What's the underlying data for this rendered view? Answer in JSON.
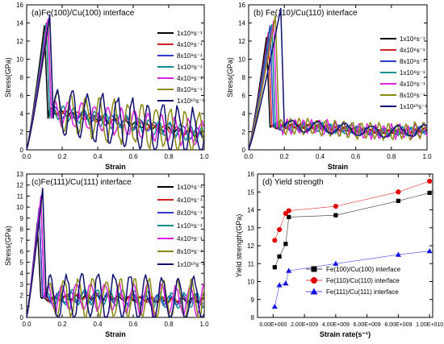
{
  "chart_data": [
    {
      "type": "line",
      "panel_label": "(a)Fe(100)/Cu(100) interface",
      "xlabel": "Strain",
      "ylabel": "Stress(GPa)",
      "xlim": [
        0,
        1.0
      ],
      "ylim": [
        0,
        16
      ],
      "xticks": [
        "0.0",
        "0.2",
        "0.4",
        "0.6",
        "0.8",
        "1.0"
      ],
      "yticks": [
        "0",
        "2",
        "4",
        "6",
        "8",
        "10",
        "12",
        "14",
        "16"
      ],
      "legend_position": "top-right",
      "series": [
        {
          "name": "1x10⁸s⁻¹",
          "color": "#000000",
          "peak": [
            0.1,
            13.7
          ],
          "osc_amp": 0.3,
          "osc_per": 0.06,
          "end": 1.0
        },
        {
          "name": "4x10⁸s⁻¹",
          "color": "#d42020",
          "peak": [
            0.11,
            14.0
          ],
          "osc_amp": 0.4,
          "osc_per": 0.07,
          "end": 1.0
        },
        {
          "name": "8x10⁸s⁻¹",
          "color": "#2d3ccc",
          "peak": [
            0.12,
            14.3
          ],
          "osc_amp": 0.6,
          "osc_per": 0.08,
          "end": 1.0
        },
        {
          "name": "1x10⁹s⁻¹",
          "color": "#0f8f8f",
          "peak": [
            0.11,
            13.9
          ],
          "osc_amp": 0.8,
          "osc_per": 0.06,
          "end": 1.0
        },
        {
          "name": "4x10⁹s⁻¹",
          "color": "#e020e0",
          "peak": [
            0.12,
            14.4
          ],
          "osc_amp": 1.4,
          "osc_per": 0.075,
          "end": 1.0
        },
        {
          "name": "8x10⁹s⁻¹",
          "color": "#8a8a10",
          "peak": [
            0.13,
            14.5
          ],
          "osc_amp": 2.2,
          "osc_per": 0.08,
          "end": 1.0
        },
        {
          "name": "1x10¹⁰s⁻¹",
          "color": "#101070",
          "peak": [
            0.13,
            14.9
          ],
          "osc_amp": 2.6,
          "osc_per": 0.085,
          "end": 1.0
        }
      ]
    },
    {
      "type": "line",
      "panel_label": "(b) Fe(110)/Cu(110) interface",
      "xlabel": "Strain",
      "ylabel": "Stress(GPa)",
      "xlim": [
        0,
        1.0
      ],
      "ylim": [
        0,
        16
      ],
      "xticks": [
        "0.0",
        "0.2",
        "0.4",
        "0.6",
        "0.8",
        "1.0"
      ],
      "yticks": [
        "0",
        "2",
        "4",
        "6",
        "8",
        "10",
        "12",
        "14",
        "16"
      ],
      "legend_position": "right",
      "series": [
        {
          "name": "1x10⁸s⁻¹",
          "color": "#000000",
          "peak": [
            0.1,
            12.4
          ],
          "osc_amp": 0.2,
          "osc_per": 0.05,
          "end": 1.0
        },
        {
          "name": "4x10⁸s⁻¹",
          "color": "#d42020",
          "peak": [
            0.11,
            12.9
          ],
          "osc_amp": 0.3,
          "osc_per": 0.05,
          "end": 1.0
        },
        {
          "name": "8x10⁸s⁻¹",
          "color": "#2d3ccc",
          "peak": [
            0.12,
            13.7
          ],
          "osc_amp": 0.4,
          "osc_per": 0.05,
          "end": 1.0
        },
        {
          "name": "1x10⁹s⁻¹",
          "color": "#0f8f8f",
          "peak": [
            0.13,
            13.8
          ],
          "osc_amp": 0.5,
          "osc_per": 0.05,
          "end": 1.0
        },
        {
          "name": "4x10⁹s⁻¹",
          "color": "#e020e0",
          "peak": [
            0.14,
            14.2
          ],
          "osc_amp": 0.8,
          "osc_per": 0.045,
          "end": 1.0
        },
        {
          "name": "8x10⁹s⁻¹",
          "color": "#8a8a10",
          "peak": [
            0.15,
            14.8
          ],
          "osc_amp": 0.9,
          "osc_per": 0.05,
          "end": 1.0
        },
        {
          "name": "1x10¹⁰s⁻¹",
          "color": "#101070",
          "peak": [
            0.18,
            15.6
          ],
          "osc_amp": 0.6,
          "osc_per": 0.15,
          "end": 1.0
        }
      ]
    },
    {
      "type": "line",
      "panel_label": "(c)Fe(111)/Cu(111) interface",
      "xlabel": "Strain",
      "ylabel": "Stress(GPa)",
      "xlim": [
        0,
        1.0
      ],
      "ylim": [
        0,
        13
      ],
      "xticks": [
        "0.0",
        "0.2",
        "0.4",
        "0.6",
        "0.8",
        "1.0"
      ],
      "yticks": [
        "0",
        "1",
        "2",
        "3",
        "4",
        "5",
        "6",
        "7",
        "8",
        "9",
        "10",
        "11",
        "12",
        "13"
      ],
      "legend_position": "right",
      "series": [
        {
          "name": "1x10⁸s⁻¹",
          "color": "#000000",
          "peak": [
            0.06,
            8.6
          ],
          "osc_amp": 0.2,
          "osc_per": 0.06,
          "end": 1.0
        },
        {
          "name": "4x10⁸s⁻¹",
          "color": "#d42020",
          "peak": [
            0.07,
            9.8
          ],
          "osc_amp": 0.3,
          "osc_per": 0.06,
          "end": 1.0
        },
        {
          "name": "8x10⁸s⁻¹",
          "color": "#2d3ccc",
          "peak": [
            0.07,
            9.9
          ],
          "osc_amp": 0.5,
          "osc_per": 0.07,
          "end": 1.0
        },
        {
          "name": "1x10⁹s⁻¹",
          "color": "#0f8f8f",
          "peak": [
            0.08,
            10.6
          ],
          "osc_amp": 0.7,
          "osc_per": 0.07,
          "end": 1.0
        },
        {
          "name": "4x10⁹s⁻¹",
          "color": "#e020e0",
          "peak": [
            0.08,
            11.0
          ],
          "osc_amp": 1.3,
          "osc_per": 0.08,
          "end": 1.0
        },
        {
          "name": "8x10⁹s⁻¹",
          "color": "#8a8a10",
          "peak": [
            0.09,
            11.5
          ],
          "osc_amp": 1.7,
          "osc_per": 0.08,
          "end": 1.0
        },
        {
          "name": "1x10¹⁰s⁻¹",
          "color": "#101070",
          "peak": [
            0.09,
            11.7
          ],
          "osc_amp": 2.0,
          "osc_per": 0.09,
          "end": 1.0
        }
      ]
    },
    {
      "type": "scatter",
      "panel_label": "(d) Yield strength",
      "xlabel": "Strain rate(s⁻¹)",
      "ylabel": "Yield strength(GPa)",
      "xlim": [
        -1000000000.0,
        10200000000.0
      ],
      "ylim": [
        8,
        16
      ],
      "xticks": [
        {
          "v": 0,
          "label": "0.00E+000"
        },
        {
          "v": 2000000000.0,
          "label": "2.00E+009"
        },
        {
          "v": 4000000000.0,
          "label": "4.00E+009"
        },
        {
          "v": 6000000000.0,
          "label": "6.00E+009"
        },
        {
          "v": 8000000000.0,
          "label": "8.00E+009"
        },
        {
          "v": 10000000000.0,
          "label": "1.00E+010"
        }
      ],
      "yticks": [
        "8",
        "9",
        "10",
        "11",
        "12",
        "13",
        "14",
        "15",
        "16"
      ],
      "legend_position": "bottom-right",
      "x": [
        100000000.0,
        400000000.0,
        800000000.0,
        1000000000.0,
        4000000000.0,
        8000000000.0,
        10000000000.0
      ],
      "series": [
        {
          "name": "Fe(100)/Cu(100) interface",
          "color": "#000000",
          "marker": "square",
          "values": [
            10.8,
            11.4,
            12.1,
            13.6,
            13.7,
            14.5,
            14.95
          ]
        },
        {
          "name": "Fe(110)/Cu(110) interface",
          "color": "#e00000",
          "marker": "circle",
          "values": [
            12.3,
            12.9,
            13.8,
            13.95,
            14.2,
            15.0,
            15.6
          ]
        },
        {
          "name": "Fe(111)/Cu(111) interface",
          "color": "#1414e0",
          "marker": "triangle",
          "values": [
            8.6,
            9.8,
            9.9,
            10.6,
            11.0,
            11.5,
            11.7
          ]
        }
      ]
    }
  ]
}
